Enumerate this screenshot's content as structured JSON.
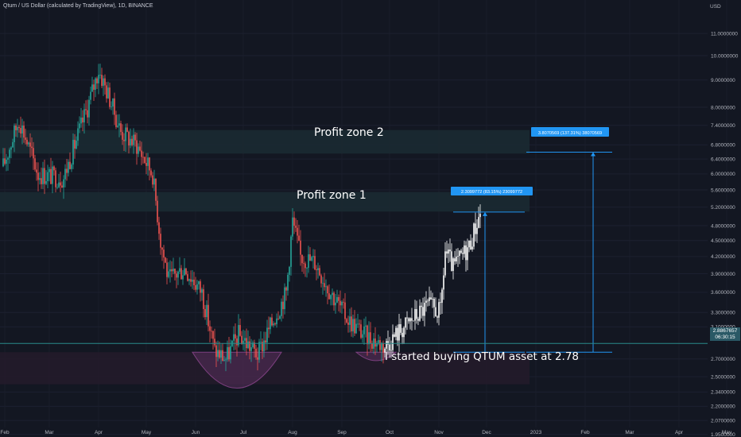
{
  "header": {
    "title": "Qtum / US Dollar (calculated by TradingView), 1D, BINANCE"
  },
  "price_axis": {
    "currency": "USD",
    "ticks": [
      "11.0000000",
      "10.0000000",
      "9.0000000",
      "8.0000000",
      "7.4000000",
      "6.8000000",
      "6.4000000",
      "6.0000000",
      "5.6000000",
      "5.2000000",
      "4.8000000",
      "4.5000000",
      "4.2000000",
      "3.9000000",
      "3.6000000",
      "3.3000000",
      "3.1000000",
      "2.7000000",
      "2.5000000",
      "2.3400000",
      "2.2000000",
      "2.0700000",
      "1.9500000"
    ]
  },
  "time_axis": {
    "labels": [
      "Feb",
      "Mar",
      "Apr",
      "May",
      "Jun",
      "Jul",
      "Aug",
      "Sep",
      "Oct",
      "Nov",
      "Dec",
      "2023",
      "Feb",
      "Mar",
      "Apr",
      "May"
    ]
  },
  "last_price": {
    "value": "2.8867657",
    "countdown": "06:30:15"
  },
  "annotations": {
    "profit_zone_2": "Profit zone 2",
    "profit_zone_1": "Profit zone 1",
    "buy_note": "I started buying QTUM asset at 2.78",
    "measure_1": "2.3099772 (83.15%) 23099772",
    "measure_2": "3.8070569 (137.31%) 38070569"
  },
  "colors": {
    "background": "#131722",
    "up": "#26a69a",
    "down": "#ef5350",
    "recent": "#ffffff",
    "zone": "#1b2b33",
    "buy_zone": "#241b2a",
    "measure": "#2196f3"
  },
  "chart_data": {
    "type": "candlestick",
    "log_scale": true,
    "y_range": [
      1.93,
      12.0
    ],
    "pattern_arcs": [
      {
        "from_date": "2022-05-30",
        "to_date": "2022-07-25",
        "bottom": 2.38
      },
      {
        "from_date": "2022-09-10",
        "to_date": "2022-10-05",
        "bottom": 2.68
      }
    ],
    "zones": [
      {
        "name": "Profit zone 2",
        "low": 6.55,
        "high": 7.25,
        "from_date": "2022-01-31",
        "to_date": "2022-12-28"
      },
      {
        "name": "Profit zone 1",
        "low": 5.1,
        "high": 5.55,
        "from_date": "2022-01-31",
        "to_date": "2022-12-28"
      },
      {
        "name": "buy zone",
        "low": 2.42,
        "high": 2.78,
        "from_date": "2022-01-31",
        "to_date": "2022-12-28"
      }
    ],
    "measures": [
      {
        "date": "2022-11-30",
        "from": 2.78,
        "to": 5.09,
        "label": "2.3099772 (83.15%) 23099772"
      },
      {
        "date": "2023-02-06",
        "from": 2.78,
        "to": 6.59,
        "label": "3.8070569 (137.31%) 38070569"
      }
    ],
    "price_path": [
      [
        "2022-01-31",
        6.2
      ],
      [
        "2022-02-10",
        7.6
      ],
      [
        "2022-02-22",
        6.0
      ],
      [
        "2022-03-10",
        5.9
      ],
      [
        "2022-03-25",
        8.0
      ],
      [
        "2022-04-01",
        9.4
      ],
      [
        "2022-04-08",
        8.3
      ],
      [
        "2022-04-15",
        7.2
      ],
      [
        "2022-04-25",
        6.8
      ],
      [
        "2022-05-05",
        6.0
      ],
      [
        "2022-05-10",
        4.5
      ],
      [
        "2022-05-15",
        3.8
      ],
      [
        "2022-05-25",
        4.0
      ],
      [
        "2022-06-05",
        3.6
      ],
      [
        "2022-06-13",
        2.8
      ],
      [
        "2022-06-20",
        2.7
      ],
      [
        "2022-06-28",
        3.0
      ],
      [
        "2022-07-10",
        2.75
      ],
      [
        "2022-07-20",
        3.2
      ],
      [
        "2022-07-28",
        3.6
      ],
      [
        "2022-08-01",
        4.9
      ],
      [
        "2022-08-06",
        4.2
      ],
      [
        "2022-08-15",
        4.1
      ],
      [
        "2022-08-25",
        3.6
      ],
      [
        "2022-09-05",
        3.2
      ],
      [
        "2022-09-15",
        3.0
      ],
      [
        "2022-09-28",
        2.85
      ],
      [
        "2022-10-05",
        3.0
      ],
      [
        "2022-10-15",
        3.2
      ],
      [
        "2022-10-25",
        3.4
      ],
      [
        "2022-11-02",
        3.3
      ],
      [
        "2022-11-05",
        4.3
      ],
      [
        "2022-11-10",
        4.0
      ],
      [
        "2022-11-20",
        4.4
      ],
      [
        "2022-11-27",
        5.08
      ]
    ]
  }
}
